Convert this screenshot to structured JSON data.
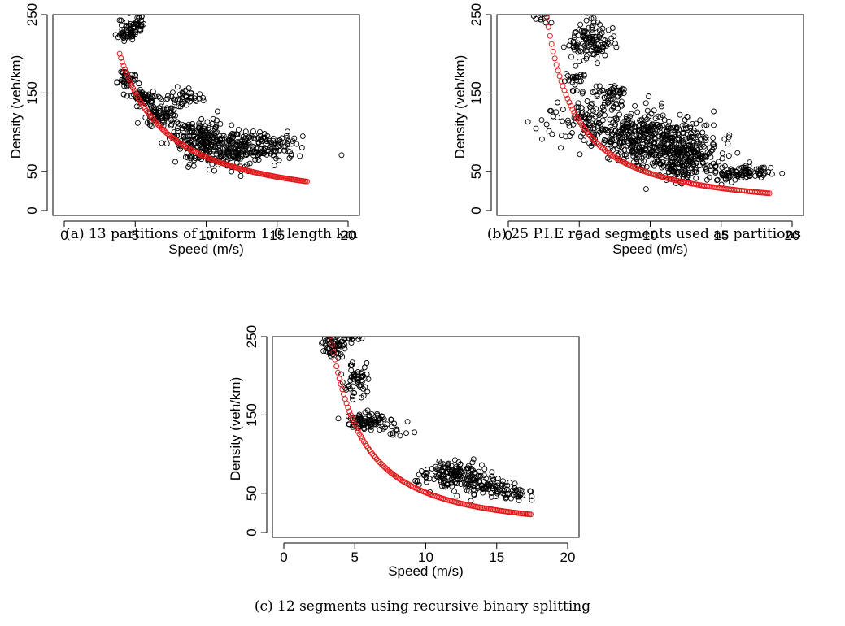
{
  "captions": {
    "a": "(a) 13 partitions of uniform 1.0 length km",
    "b": "(b) 25 P.I.E road segments used as partitions",
    "c": "(c) 12 segments using recursive binary splitting"
  },
  "colors": {
    "points": "#000000",
    "fit": "#e31a1c",
    "axis": "#000000"
  },
  "chart_data": [
    {
      "type": "scatter",
      "title": "",
      "xlabel": "Speed (m/s)",
      "ylabel": "Density (veh/km)",
      "xlim": [
        0,
        20
      ],
      "ylim": [
        0,
        250
      ],
      "xticks": [
        0,
        5,
        10,
        15,
        20
      ],
      "yticks": [
        0,
        50,
        150,
        250
      ],
      "grid": false,
      "fit_curve": {
        "x_range": [
          3.9,
          17.1
        ],
        "y_at_start": 200,
        "y_at_end": 37
      },
      "clusters": [
        {
          "cx": 4.5,
          "cy": 230,
          "sx": 0.35,
          "sy": 8,
          "n": 60
        },
        {
          "cx": 5.3,
          "cy": 238,
          "sx": 0.25,
          "sy": 5,
          "n": 20
        },
        {
          "cx": 4.5,
          "cy": 168,
          "sx": 0.35,
          "sy": 6,
          "n": 40
        },
        {
          "cx": 5.6,
          "cy": 143,
          "sx": 0.5,
          "sy": 6,
          "n": 60
        },
        {
          "cx": 6.8,
          "cy": 122,
          "sx": 0.6,
          "sy": 6,
          "n": 70
        },
        {
          "cx": 8.5,
          "cy": 145,
          "sx": 0.6,
          "sy": 5,
          "n": 45
        },
        {
          "cx": 9.5,
          "cy": 95,
          "sx": 1.0,
          "sy": 12,
          "n": 180
        },
        {
          "cx": 11.5,
          "cy": 75,
          "sx": 1.3,
          "sy": 11,
          "n": 180
        },
        {
          "cx": 14.0,
          "cy": 85,
          "sx": 1.2,
          "sy": 9,
          "n": 110
        }
      ]
    },
    {
      "type": "scatter",
      "title": "",
      "xlabel": "Speed (m/s)",
      "ylabel": "Density (veh/km)",
      "xlim": [
        0,
        20
      ],
      "ylim": [
        0,
        250
      ],
      "xticks": [
        0,
        5,
        10,
        15,
        20
      ],
      "yticks": [
        0,
        50,
        150,
        250
      ],
      "grid": false,
      "fit_curve": {
        "x_range": [
          2.6,
          18.4
        ],
        "y_at_start": 260,
        "y_at_end": 22
      },
      "clusters": [
        {
          "cx": 2.6,
          "cy": 250,
          "sx": 0.3,
          "sy": 6,
          "n": 20
        },
        {
          "cx": 5.6,
          "cy": 215,
          "sx": 0.8,
          "sy": 12,
          "n": 120
        },
        {
          "cx": 4.8,
          "cy": 168,
          "sx": 0.4,
          "sy": 6,
          "n": 25
        },
        {
          "cx": 7.0,
          "cy": 150,
          "sx": 0.7,
          "sy": 6,
          "n": 45
        },
        {
          "cx": 5.5,
          "cy": 115,
          "sx": 1.4,
          "sy": 18,
          "n": 110
        },
        {
          "cx": 8.5,
          "cy": 95,
          "sx": 1.3,
          "sy": 16,
          "n": 220
        },
        {
          "cx": 11.5,
          "cy": 85,
          "sx": 1.6,
          "sy": 16,
          "n": 280
        },
        {
          "cx": 12.5,
          "cy": 60,
          "sx": 1.5,
          "sy": 12,
          "n": 160
        },
        {
          "cx": 16.5,
          "cy": 48,
          "sx": 1.0,
          "sy": 6,
          "n": 90
        }
      ]
    },
    {
      "type": "scatter",
      "title": "",
      "xlabel": "Speed (m/s)",
      "ylabel": "Density (veh/km)",
      "xlim": [
        0,
        20
      ],
      "ylim": [
        0,
        250
      ],
      "xticks": [
        0,
        5,
        10,
        15,
        20
      ],
      "yticks": [
        0,
        50,
        150,
        250
      ],
      "grid": false,
      "fit_curve": {
        "x_range": [
          3.2,
          17.4
        ],
        "y_at_start": 262,
        "y_at_end": 23
      },
      "clusters": [
        {
          "cx": 3.5,
          "cy": 238,
          "sx": 0.35,
          "sy": 8,
          "n": 60
        },
        {
          "cx": 4.6,
          "cy": 255,
          "sx": 0.6,
          "sy": 7,
          "n": 50
        },
        {
          "cx": 5.0,
          "cy": 195,
          "sx": 0.4,
          "sy": 12,
          "n": 55
        },
        {
          "cx": 5.7,
          "cy": 143,
          "sx": 0.6,
          "sy": 6,
          "n": 80
        },
        {
          "cx": 7.8,
          "cy": 135,
          "sx": 0.7,
          "sy": 5,
          "n": 20
        },
        {
          "cx": 12.0,
          "cy": 75,
          "sx": 1.2,
          "sy": 8,
          "n": 150
        },
        {
          "cx": 14.5,
          "cy": 58,
          "sx": 1.2,
          "sy": 6,
          "n": 80
        },
        {
          "cx": 16.5,
          "cy": 48,
          "sx": 0.6,
          "sy": 4,
          "n": 25
        }
      ]
    }
  ]
}
